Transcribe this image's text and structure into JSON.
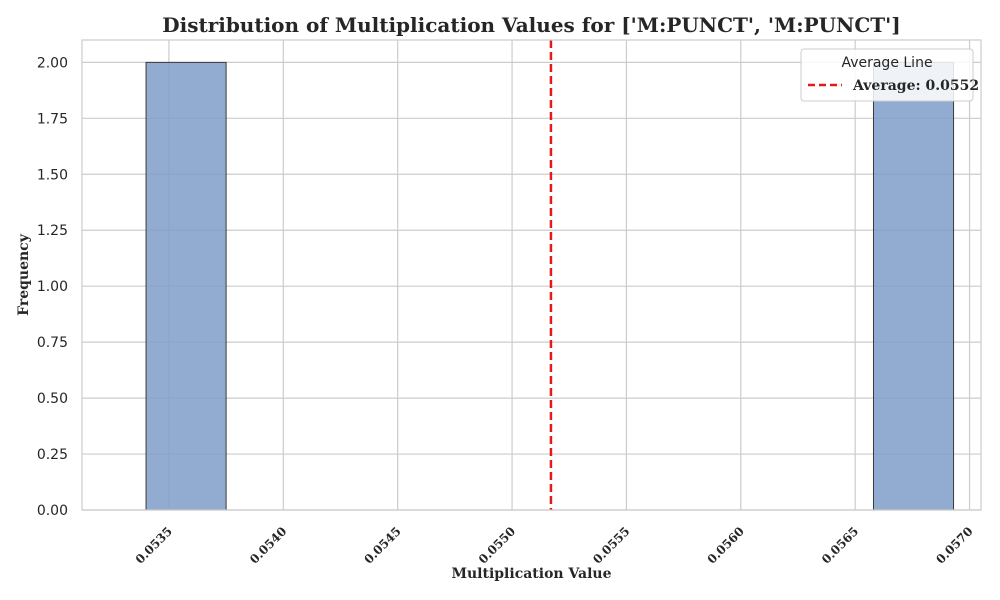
{
  "chart_data": {
    "type": "bar",
    "title": "Distribution of Multiplication Values for ['M:PUNCT', 'M:PUNCT']",
    "xlabel": "Multiplication Value",
    "ylabel": "Frequency",
    "xlim": [
      0.05312,
      0.05705
    ],
    "ylim": [
      0,
      2.1
    ],
    "x_ticks": [
      "0.0535",
      "0.0540",
      "0.0545",
      "0.0550",
      "0.0555",
      "0.0560",
      "0.0565",
      "0.0570"
    ],
    "y_ticks": [
      "0.00",
      "0.25",
      "0.50",
      "0.75",
      "1.00",
      "1.25",
      "1.50",
      "1.75",
      "2.00"
    ],
    "bins": [
      {
        "x0": 0.0534,
        "x1": 0.05375,
        "count": 2
      },
      {
        "x0": 0.05658,
        "x1": 0.05693,
        "count": 2
      }
    ],
    "average": 0.05517,
    "grid": true,
    "bar_color": "#7f9cc9",
    "average_line_color": "#e31a1c",
    "legend": {
      "title": "Average Line",
      "entries": [
        "Average: 0.0552"
      ],
      "placement": "top-right"
    }
  }
}
